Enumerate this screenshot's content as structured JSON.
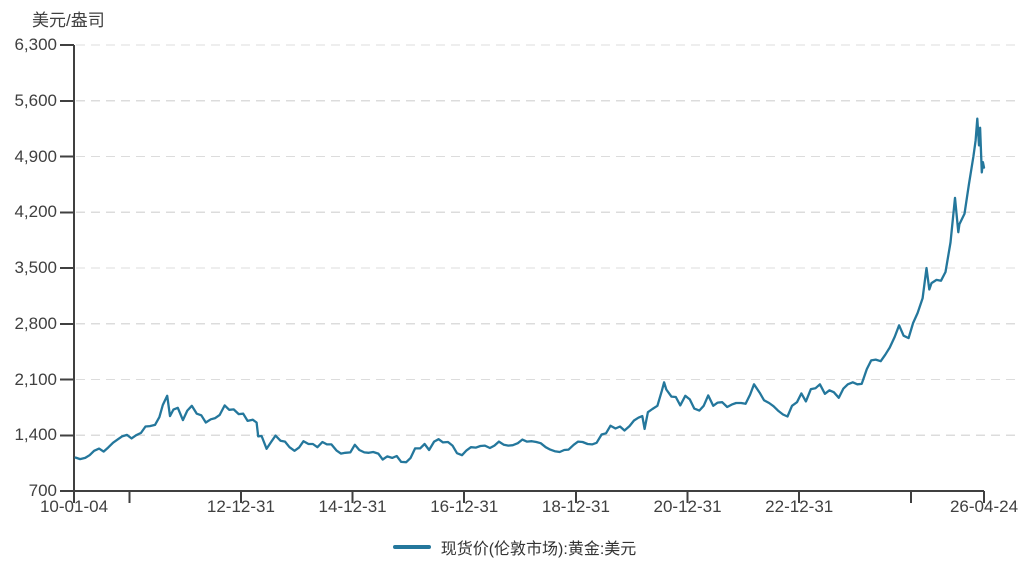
{
  "colors": {
    "series": "#24779C",
    "axis": "#404040",
    "grid": "#DCDCDC",
    "text": "#404040",
    "background": "#FFFFFF"
  },
  "chart_data": {
    "type": "line",
    "title": "",
    "ylabel": "美元/盎司",
    "xlabel": "",
    "grid": "horizontal-dashed",
    "legend_position": "bottom-center",
    "y_axis": {
      "min": 700,
      "max": 6300,
      "step": 700,
      "ticks": [
        {
          "v": 6300,
          "label": "6,300"
        },
        {
          "v": 5600,
          "label": "5,600"
        },
        {
          "v": 4900,
          "label": "4,900"
        },
        {
          "v": 4200,
          "label": "4,200"
        },
        {
          "v": 3500,
          "label": "3,500"
        },
        {
          "v": 2800,
          "label": "2,800"
        },
        {
          "v": 2100,
          "label": "2,100"
        },
        {
          "v": 1400,
          "label": "1,400"
        },
        {
          "v": 700,
          "label": "700"
        }
      ]
    },
    "x_axis": {
      "min": 2010.01,
      "max": 2026.31,
      "ticks": [
        {
          "t": 2010.01,
          "label": "10-01-04"
        },
        {
          "t": 2011.0,
          "label": ""
        },
        {
          "t": 2013.0,
          "label": "12-12-31"
        },
        {
          "t": 2015.0,
          "label": "14-12-31"
        },
        {
          "t": 2017.0,
          "label": "16-12-31"
        },
        {
          "t": 2019.0,
          "label": "18-12-31"
        },
        {
          "t": 2021.0,
          "label": "20-12-31"
        },
        {
          "t": 2023.0,
          "label": "22-12-31"
        },
        {
          "t": 2025.0,
          "label": ""
        },
        {
          "t": 2026.31,
          "label": "26-04-24"
        }
      ]
    },
    "series": [
      {
        "name": "现货价(伦敦市场):黄金:美元",
        "color": "#24779C",
        "points": [
          [
            2010.04,
            1120
          ],
          [
            2010.12,
            1100
          ],
          [
            2010.21,
            1115
          ],
          [
            2010.29,
            1150
          ],
          [
            2010.37,
            1205
          ],
          [
            2010.46,
            1232
          ],
          [
            2010.54,
            1195
          ],
          [
            2010.62,
            1245
          ],
          [
            2010.71,
            1307
          ],
          [
            2010.79,
            1345
          ],
          [
            2010.87,
            1385
          ],
          [
            2010.96,
            1405
          ],
          [
            2011.04,
            1360
          ],
          [
            2011.12,
            1400
          ],
          [
            2011.21,
            1430
          ],
          [
            2011.29,
            1510
          ],
          [
            2011.37,
            1515
          ],
          [
            2011.46,
            1530
          ],
          [
            2011.54,
            1628
          ],
          [
            2011.6,
            1780
          ],
          [
            2011.68,
            1895
          ],
          [
            2011.73,
            1640
          ],
          [
            2011.79,
            1722
          ],
          [
            2011.87,
            1745
          ],
          [
            2011.96,
            1590
          ],
          [
            2012.04,
            1710
          ],
          [
            2012.12,
            1770
          ],
          [
            2012.21,
            1670
          ],
          [
            2012.29,
            1650
          ],
          [
            2012.37,
            1560
          ],
          [
            2012.46,
            1600
          ],
          [
            2012.54,
            1615
          ],
          [
            2012.62,
            1655
          ],
          [
            2012.71,
            1775
          ],
          [
            2012.79,
            1720
          ],
          [
            2012.87,
            1725
          ],
          [
            2012.96,
            1665
          ],
          [
            2013.04,
            1670
          ],
          [
            2013.12,
            1580
          ],
          [
            2013.21,
            1595
          ],
          [
            2013.28,
            1560
          ],
          [
            2013.31,
            1385
          ],
          [
            2013.37,
            1390
          ],
          [
            2013.46,
            1230
          ],
          [
            2013.54,
            1315
          ],
          [
            2013.62,
            1395
          ],
          [
            2013.71,
            1330
          ],
          [
            2013.79,
            1320
          ],
          [
            2013.87,
            1250
          ],
          [
            2013.96,
            1205
          ],
          [
            2014.04,
            1245
          ],
          [
            2014.12,
            1325
          ],
          [
            2014.21,
            1290
          ],
          [
            2014.29,
            1290
          ],
          [
            2014.37,
            1250
          ],
          [
            2014.46,
            1315
          ],
          [
            2014.54,
            1285
          ],
          [
            2014.62,
            1285
          ],
          [
            2014.71,
            1210
          ],
          [
            2014.79,
            1170
          ],
          [
            2014.87,
            1180
          ],
          [
            2014.96,
            1185
          ],
          [
            2015.04,
            1280
          ],
          [
            2015.12,
            1215
          ],
          [
            2015.21,
            1185
          ],
          [
            2015.29,
            1180
          ],
          [
            2015.37,
            1190
          ],
          [
            2015.46,
            1170
          ],
          [
            2015.54,
            1095
          ],
          [
            2015.62,
            1135
          ],
          [
            2015.71,
            1115
          ],
          [
            2015.79,
            1140
          ],
          [
            2015.87,
            1065
          ],
          [
            2015.96,
            1062
          ],
          [
            2016.04,
            1115
          ],
          [
            2016.12,
            1235
          ],
          [
            2016.21,
            1235
          ],
          [
            2016.29,
            1290
          ],
          [
            2016.37,
            1215
          ],
          [
            2016.46,
            1320
          ],
          [
            2016.54,
            1350
          ],
          [
            2016.62,
            1310
          ],
          [
            2016.71,
            1315
          ],
          [
            2016.79,
            1270
          ],
          [
            2016.87,
            1175
          ],
          [
            2016.96,
            1150
          ],
          [
            2017.04,
            1210
          ],
          [
            2017.12,
            1250
          ],
          [
            2017.21,
            1245
          ],
          [
            2017.29,
            1265
          ],
          [
            2017.37,
            1270
          ],
          [
            2017.46,
            1240
          ],
          [
            2017.54,
            1270
          ],
          [
            2017.62,
            1320
          ],
          [
            2017.71,
            1280
          ],
          [
            2017.79,
            1270
          ],
          [
            2017.87,
            1275
          ],
          [
            2017.96,
            1300
          ],
          [
            2018.04,
            1345
          ],
          [
            2018.12,
            1320
          ],
          [
            2018.21,
            1325
          ],
          [
            2018.29,
            1315
          ],
          [
            2018.37,
            1300
          ],
          [
            2018.46,
            1250
          ],
          [
            2018.54,
            1220
          ],
          [
            2018.62,
            1200
          ],
          [
            2018.71,
            1190
          ],
          [
            2018.79,
            1215
          ],
          [
            2018.87,
            1220
          ],
          [
            2018.96,
            1280
          ],
          [
            2019.04,
            1320
          ],
          [
            2019.12,
            1315
          ],
          [
            2019.21,
            1290
          ],
          [
            2019.29,
            1285
          ],
          [
            2019.37,
            1305
          ],
          [
            2019.46,
            1410
          ],
          [
            2019.54,
            1425
          ],
          [
            2019.62,
            1520
          ],
          [
            2019.71,
            1485
          ],
          [
            2019.79,
            1510
          ],
          [
            2019.87,
            1460
          ],
          [
            2019.96,
            1515
          ],
          [
            2020.04,
            1585
          ],
          [
            2020.12,
            1620
          ],
          [
            2020.19,
            1640
          ],
          [
            2020.23,
            1480
          ],
          [
            2020.29,
            1690
          ],
          [
            2020.37,
            1730
          ],
          [
            2020.46,
            1770
          ],
          [
            2020.54,
            1960
          ],
          [
            2020.58,
            2065
          ],
          [
            2020.62,
            1975
          ],
          [
            2020.71,
            1885
          ],
          [
            2020.79,
            1880
          ],
          [
            2020.87,
            1775
          ],
          [
            2020.96,
            1895
          ],
          [
            2021.04,
            1850
          ],
          [
            2021.12,
            1735
          ],
          [
            2021.21,
            1710
          ],
          [
            2021.29,
            1770
          ],
          [
            2021.37,
            1900
          ],
          [
            2021.46,
            1770
          ],
          [
            2021.54,
            1810
          ],
          [
            2021.62,
            1815
          ],
          [
            2021.71,
            1755
          ],
          [
            2021.79,
            1785
          ],
          [
            2021.87,
            1805
          ],
          [
            2021.96,
            1805
          ],
          [
            2022.04,
            1795
          ],
          [
            2022.12,
            1910
          ],
          [
            2022.19,
            2040
          ],
          [
            2022.29,
            1935
          ],
          [
            2022.37,
            1840
          ],
          [
            2022.46,
            1805
          ],
          [
            2022.54,
            1765
          ],
          [
            2022.62,
            1710
          ],
          [
            2022.71,
            1660
          ],
          [
            2022.79,
            1635
          ],
          [
            2022.87,
            1770
          ],
          [
            2022.96,
            1815
          ],
          [
            2023.04,
            1925
          ],
          [
            2023.12,
            1825
          ],
          [
            2023.21,
            1980
          ],
          [
            2023.29,
            1990
          ],
          [
            2023.37,
            2040
          ],
          [
            2023.46,
            1920
          ],
          [
            2023.54,
            1965
          ],
          [
            2023.62,
            1940
          ],
          [
            2023.71,
            1870
          ],
          [
            2023.79,
            1985
          ],
          [
            2023.87,
            2040
          ],
          [
            2023.96,
            2065
          ],
          [
            2024.04,
            2040
          ],
          [
            2024.12,
            2045
          ],
          [
            2024.21,
            2230
          ],
          [
            2024.29,
            2340
          ],
          [
            2024.37,
            2350
          ],
          [
            2024.46,
            2330
          ],
          [
            2024.54,
            2410
          ],
          [
            2024.62,
            2500
          ],
          [
            2024.71,
            2635
          ],
          [
            2024.79,
            2780
          ],
          [
            2024.87,
            2650
          ],
          [
            2024.96,
            2620
          ],
          [
            2025.04,
            2810
          ],
          [
            2025.12,
            2935
          ],
          [
            2025.21,
            3120
          ],
          [
            2025.28,
            3500
          ],
          [
            2025.33,
            3230
          ],
          [
            2025.37,
            3310
          ],
          [
            2025.46,
            3350
          ],
          [
            2025.54,
            3340
          ],
          [
            2025.62,
            3450
          ],
          [
            2025.71,
            3820
          ],
          [
            2025.79,
            4380
          ],
          [
            2025.85,
            3950
          ],
          [
            2025.87,
            4050
          ],
          [
            2025.96,
            4180
          ],
          [
            2026.04,
            4550
          ],
          [
            2026.12,
            4900
          ],
          [
            2026.16,
            5100
          ],
          [
            2026.19,
            5375
          ],
          [
            2026.22,
            5040
          ],
          [
            2026.24,
            5260
          ],
          [
            2026.27,
            4700
          ],
          [
            2026.29,
            4830
          ],
          [
            2026.31,
            4760
          ]
        ]
      }
    ]
  }
}
